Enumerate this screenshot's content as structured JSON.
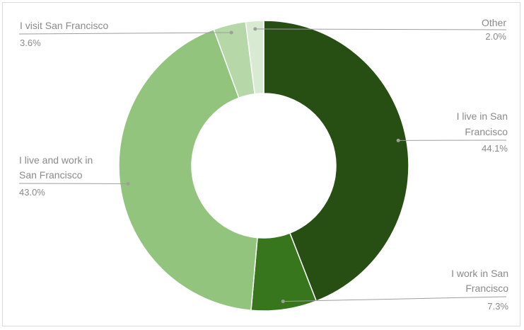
{
  "chart_data": {
    "type": "pie",
    "variant": "donut",
    "title": "",
    "legend": "none",
    "slices": [
      {
        "name": "I live in San Francisco",
        "value": 44.1,
        "label": "44.1%",
        "color": "#274e13"
      },
      {
        "name": "I work in San Francisco",
        "value": 7.3,
        "label": "7.3%",
        "color": "#38761d"
      },
      {
        "name": "I live and work in San Francisco",
        "value": 43.0,
        "label": "43.0%",
        "color": "#93c47d"
      },
      {
        "name": "I visit San Francisco",
        "value": 3.6,
        "label": "3.6%",
        "color": "#b6d7a8"
      },
      {
        "name": "Other",
        "value": 2.0,
        "label": "2.0%",
        "color": "#d9ead3"
      }
    ]
  }
}
